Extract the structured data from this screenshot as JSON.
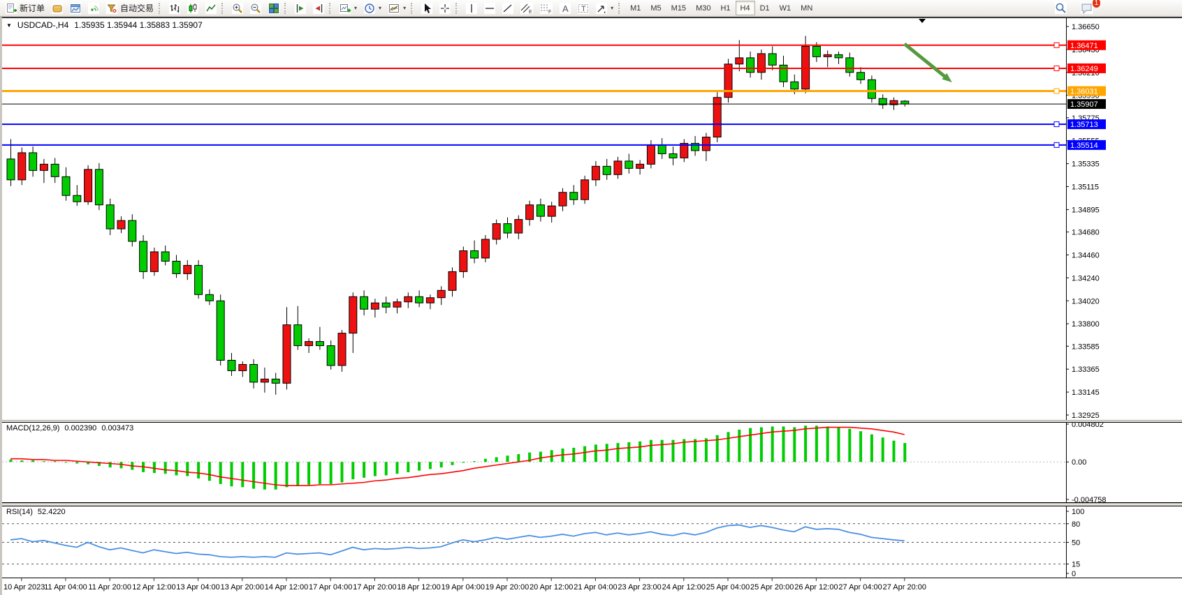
{
  "toolbar": {
    "new_order": "新订单",
    "autotrade": "自动交易",
    "timeframes": [
      "M1",
      "M5",
      "M15",
      "M30",
      "H1",
      "H4",
      "D1",
      "W1",
      "MN"
    ],
    "active_timeframe": "H4",
    "notification_count": "1",
    "glyphs": {
      "caret": "▾",
      "channel": "E",
      "fibo": "F",
      "text": "A",
      "label": "T"
    }
  },
  "chart": {
    "dropdown_glyph": "▼",
    "symbol_period": "USDCAD-,H4",
    "ohlc": "1.35935 1.35944 1.35883 1.35907"
  },
  "indicators": {
    "macd_title": "MACD(12,26,9)",
    "macd_value": "0.002390",
    "macd_signal_value": "0.003473",
    "rsi_title": "RSI(14)",
    "rsi_value": "52.4220"
  },
  "colors": {
    "bull_body": "#ee1111",
    "bear_body": "#00cc00",
    "wick": "#000000",
    "line_red": "#ff0000",
    "line_orange": "#ffa500",
    "line_blue": "#0000ff",
    "current_price_line": "#000000",
    "macd_hist": "#00cc00",
    "macd_signal": "#ff0000",
    "rsi_line": "#4a90e2",
    "arrow_green": "#569a3e"
  },
  "chart_data": [
    {
      "type": "candlestick",
      "symbol": "USDCAD",
      "timeframe": "H4",
      "ylim": [
        1.32925,
        1.3665
      ],
      "y_ticks": [
        1.3665,
        1.3643,
        1.3621,
        1.3599,
        1.35775,
        1.35555,
        1.35335,
        1.35115,
        1.34895,
        1.3468,
        1.3446,
        1.3424,
        1.3402,
        1.338,
        1.33585,
        1.33365,
        1.33145,
        1.32925
      ],
      "x_labels": [
        "10 Apr 2023",
        "11 Apr 04:00",
        "11 Apr 20:00",
        "12 Apr 12:00",
        "13 Apr 04:00",
        "13 Apr 20:00",
        "14 Apr 12:00",
        "17 Apr 04:00",
        "17 Apr 20:00",
        "18 Apr 12:00",
        "19 Apr 04:00",
        "19 Apr 20:00",
        "20 Apr 12:00",
        "21 Apr 04:00",
        "23 Apr 23:00",
        "24 Apr 12:00",
        "25 Apr 04:00",
        "25 Apr 20:00",
        "26 Apr 12:00",
        "27 Apr 04:00",
        "27 Apr 20:00"
      ],
      "x_label_start_index": 1,
      "x_label_step": 4,
      "candles": [
        [
          1.3538,
          1.3557,
          1.3512,
          1.3518
        ],
        [
          1.3518,
          1.3549,
          1.3513,
          1.3544
        ],
        [
          1.3544,
          1.355,
          1.3521,
          1.3527
        ],
        [
          1.3527,
          1.3538,
          1.3515,
          1.3533
        ],
        [
          1.3533,
          1.3539,
          1.3515,
          1.3521
        ],
        [
          1.3521,
          1.353,
          1.3498,
          1.3503
        ],
        [
          1.3503,
          1.3513,
          1.3493,
          1.3497
        ],
        [
          1.3497,
          1.3532,
          1.3494,
          1.3528
        ],
        [
          1.3528,
          1.3534,
          1.3489,
          1.3494
        ],
        [
          1.3494,
          1.35,
          1.3465,
          1.3471
        ],
        [
          1.3471,
          1.3483,
          1.3467,
          1.3479
        ],
        [
          1.3479,
          1.3485,
          1.3454,
          1.3459
        ],
        [
          1.3459,
          1.3465,
          1.3423,
          1.343
        ],
        [
          1.343,
          1.3453,
          1.3426,
          1.3449
        ],
        [
          1.3449,
          1.3455,
          1.3436,
          1.344
        ],
        [
          1.344,
          1.3446,
          1.3424,
          1.3428
        ],
        [
          1.3428,
          1.3441,
          1.3422,
          1.3436
        ],
        [
          1.3436,
          1.3441,
          1.3404,
          1.3408
        ],
        [
          1.3408,
          1.3413,
          1.3398,
          1.3402
        ],
        [
          1.3402,
          1.3408,
          1.334,
          1.3345
        ],
        [
          1.3345,
          1.3352,
          1.333,
          1.3335
        ],
        [
          1.3335,
          1.3344,
          1.3329,
          1.3341
        ],
        [
          1.3341,
          1.3346,
          1.3318,
          1.3324
        ],
        [
          1.3324,
          1.3338,
          1.3314,
          1.3327
        ],
        [
          1.3327,
          1.3333,
          1.3312,
          1.3323
        ],
        [
          1.3323,
          1.3396,
          1.3317,
          1.3379
        ],
        [
          1.3379,
          1.3397,
          1.3355,
          1.3359
        ],
        [
          1.3359,
          1.3366,
          1.3352,
          1.3363
        ],
        [
          1.3363,
          1.3377,
          1.3355,
          1.3359
        ],
        [
          1.3359,
          1.3364,
          1.3336,
          1.334
        ],
        [
          1.334,
          1.3374,
          1.3334,
          1.3371
        ],
        [
          1.3371,
          1.341,
          1.3352,
          1.3406
        ],
        [
          1.3406,
          1.3412,
          1.3388,
          1.3394
        ],
        [
          1.3394,
          1.3404,
          1.3386,
          1.34
        ],
        [
          1.34,
          1.3406,
          1.339,
          1.3396
        ],
        [
          1.3396,
          1.3404,
          1.339,
          1.3401
        ],
        [
          1.3401,
          1.341,
          1.3395,
          1.3406
        ],
        [
          1.3406,
          1.3412,
          1.3396,
          1.34
        ],
        [
          1.34,
          1.3408,
          1.3394,
          1.3405
        ],
        [
          1.3405,
          1.3416,
          1.3398,
          1.3412
        ],
        [
          1.3412,
          1.3434,
          1.3406,
          1.343
        ],
        [
          1.343,
          1.3454,
          1.3424,
          1.345
        ],
        [
          1.345,
          1.346,
          1.3438,
          1.3443
        ],
        [
          1.3443,
          1.3465,
          1.3439,
          1.3461
        ],
        [
          1.3461,
          1.348,
          1.3456,
          1.3476
        ],
        [
          1.3476,
          1.3482,
          1.3462,
          1.3467
        ],
        [
          1.3467,
          1.3484,
          1.3461,
          1.348
        ],
        [
          1.348,
          1.3498,
          1.3474,
          1.3494
        ],
        [
          1.3494,
          1.35,
          1.3478,
          1.3483
        ],
        [
          1.3483,
          1.3497,
          1.3477,
          1.3493
        ],
        [
          1.3493,
          1.351,
          1.3488,
          1.3506
        ],
        [
          1.3506,
          1.3513,
          1.3494,
          1.3499
        ],
        [
          1.3499,
          1.3522,
          1.3495,
          1.3518
        ],
        [
          1.3518,
          1.3536,
          1.3512,
          1.3531
        ],
        [
          1.3531,
          1.3538,
          1.3518,
          1.3523
        ],
        [
          1.3523,
          1.354,
          1.3519,
          1.3536
        ],
        [
          1.3536,
          1.3543,
          1.3524,
          1.3529
        ],
        [
          1.3529,
          1.3537,
          1.3523,
          1.3533
        ],
        [
          1.3533,
          1.3556,
          1.3529,
          1.3551
        ],
        [
          1.3551,
          1.3558,
          1.3538,
          1.3543
        ],
        [
          1.3543,
          1.355,
          1.3532,
          1.3539
        ],
        [
          1.3539,
          1.3557,
          1.3535,
          1.3553
        ],
        [
          1.3553,
          1.356,
          1.3541,
          1.3546
        ],
        [
          1.3546,
          1.3563,
          1.3536,
          1.3559
        ],
        [
          1.3559,
          1.3602,
          1.3554,
          1.3597
        ],
        [
          1.3597,
          1.3634,
          1.3592,
          1.3629
        ],
        [
          1.3629,
          1.3652,
          1.3622,
          1.3635
        ],
        [
          1.3635,
          1.3641,
          1.3616,
          1.3621
        ],
        [
          1.3621,
          1.3643,
          1.3614,
          1.3639
        ],
        [
          1.3639,
          1.3646,
          1.3623,
          1.3628
        ],
        [
          1.3628,
          1.3637,
          1.3607,
          1.3612
        ],
        [
          1.3612,
          1.3619,
          1.36,
          1.3605
        ],
        [
          1.3605,
          1.3656,
          1.3601,
          1.3646
        ],
        [
          1.3646,
          1.365,
          1.3631,
          1.3636
        ],
        [
          1.3636,
          1.3642,
          1.3626,
          1.3638
        ],
        [
          1.3638,
          1.3641,
          1.3629,
          1.3635
        ],
        [
          1.3635,
          1.364,
          1.3617,
          1.3621
        ],
        [
          1.3621,
          1.3626,
          1.361,
          1.3614
        ],
        [
          1.3614,
          1.3618,
          1.3592,
          1.3596
        ],
        [
          1.3596,
          1.36,
          1.3586,
          1.359
        ],
        [
          1.359,
          1.3597,
          1.3585,
          1.3594
        ],
        [
          1.35935,
          1.35944,
          1.35883,
          1.35907
        ]
      ],
      "hlines": [
        {
          "price": 1.36471,
          "color": "#ff0000",
          "width": 2,
          "label": "1.36471"
        },
        {
          "price": 1.36249,
          "color": "#ff0000",
          "width": 2,
          "label": "1.36249"
        },
        {
          "price": 1.36031,
          "color": "#ffa500",
          "width": 3,
          "label": "1.36031"
        },
        {
          "price": 1.35713,
          "color": "#0000ff",
          "width": 2,
          "label": "1.35713"
        },
        {
          "price": 1.35514,
          "color": "#0000ff",
          "width": 2,
          "label": "1.35514"
        }
      ],
      "current_price": 1.35907,
      "current_price_label": "1.35907",
      "arrow": {
        "i1": 81.0,
        "p1": 1.36483,
        "i2": 85.3,
        "p2": 1.36115,
        "color": "#569a3e"
      },
      "shift_marker_index": 82.6
    },
    {
      "type": "bar",
      "title": "MACD(12,26,9)",
      "ylim": [
        -0.004758,
        0.004802
      ],
      "y_ticks": [
        {
          "v": 0.004802,
          "label": "0.004802"
        },
        {
          "v": 0,
          "label": "0.00"
        },
        {
          "v": -0.004758,
          "label": "-0.004758"
        }
      ],
      "hist": [
        0.0003,
        0.0002,
        0.0002,
        0.0001,
        0.0001,
        0.0,
        -0.0002,
        -0.0003,
        -0.0005,
        -0.0007,
        -0.0008,
        -0.001,
        -0.0013,
        -0.0014,
        -0.0015,
        -0.0017,
        -0.0018,
        -0.0021,
        -0.0024,
        -0.0028,
        -0.0031,
        -0.0032,
        -0.0034,
        -0.0035,
        -0.0035,
        -0.0032,
        -0.003,
        -0.0029,
        -0.0028,
        -0.0028,
        -0.0026,
        -0.0022,
        -0.002,
        -0.0018,
        -0.0017,
        -0.0015,
        -0.0013,
        -0.0011,
        -0.0009,
        -0.0007,
        -0.0004,
        -0.0001,
        0.0001,
        0.0004,
        0.0006,
        0.0008,
        0.001,
        0.0012,
        0.0013,
        0.0015,
        0.0017,
        0.0018,
        0.002,
        0.0022,
        0.0023,
        0.0024,
        0.0025,
        0.0026,
        0.0028,
        0.0028,
        0.0028,
        0.0029,
        0.0029,
        0.003,
        0.0034,
        0.0038,
        0.0041,
        0.0043,
        0.0044,
        0.0045,
        0.0045,
        0.0044,
        0.0046,
        0.0046,
        0.0045,
        0.0044,
        0.0042,
        0.0039,
        0.0035,
        0.0031,
        0.0027,
        0.0024
      ],
      "signal": [
        0.0004,
        0.0004,
        0.0003,
        0.0003,
        0.0002,
        0.0002,
        0.0001,
        0.0,
        -0.0001,
        -0.0002,
        -0.0003,
        -0.0005,
        -0.0006,
        -0.0008,
        -0.001,
        -0.0011,
        -0.0013,
        -0.0014,
        -0.0016,
        -0.0019,
        -0.0021,
        -0.0023,
        -0.0025,
        -0.0027,
        -0.0029,
        -0.003,
        -0.003,
        -0.003,
        -0.0029,
        -0.0029,
        -0.0028,
        -0.0027,
        -0.0026,
        -0.0024,
        -0.0023,
        -0.0021,
        -0.002,
        -0.0018,
        -0.0016,
        -0.0015,
        -0.0013,
        -0.0011,
        -0.0008,
        -0.0006,
        -0.0004,
        -0.0002,
        0.0,
        0.0002,
        0.0005,
        0.0007,
        0.0009,
        0.001,
        0.0012,
        0.0014,
        0.0015,
        0.0017,
        0.0018,
        0.0019,
        0.0021,
        0.0022,
        0.0023,
        0.0025,
        0.0026,
        0.0027,
        0.0028,
        0.003,
        0.0032,
        0.0034,
        0.0036,
        0.0038,
        0.0039,
        0.004,
        0.0042,
        0.0043,
        0.0044,
        0.0044,
        0.0044,
        0.0043,
        0.0042,
        0.004,
        0.0038,
        0.003473
      ],
      "current_value": 0.00239,
      "current_signal": 0.003473
    },
    {
      "type": "line",
      "title": "RSI(14)",
      "ylim": [
        0,
        100
      ],
      "y_ticks": [
        {
          "v": 100,
          "label": "100"
        },
        {
          "v": 80,
          "label": "80"
        },
        {
          "v": 50,
          "label": "50"
        },
        {
          "v": 15,
          "label": "15"
        },
        {
          "v": 0,
          "label": "0"
        }
      ],
      "levels": [
        80,
        50,
        15
      ],
      "values": [
        54,
        56,
        51,
        53,
        49,
        45,
        42,
        50,
        43,
        38,
        41,
        37,
        33,
        38,
        35,
        32,
        34,
        31,
        30,
        27,
        26,
        27,
        26,
        27,
        26,
        33,
        31,
        32,
        33,
        30,
        36,
        42,
        38,
        40,
        39,
        40,
        42,
        40,
        41,
        43,
        49,
        54,
        51,
        54,
        58,
        55,
        58,
        61,
        58,
        60,
        63,
        60,
        64,
        66,
        62,
        65,
        62,
        64,
        67,
        63,
        61,
        65,
        62,
        66,
        73,
        77,
        78,
        74,
        77,
        74,
        70,
        67,
        75,
        71,
        72,
        71,
        66,
        63,
        58,
        56,
        54,
        52.42
      ],
      "current_value": 52.422
    }
  ]
}
